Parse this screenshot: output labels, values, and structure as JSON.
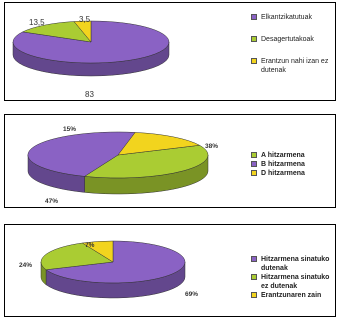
{
  "colors": {
    "purple": "#8a62c4",
    "green": "#aacc33",
    "yellow": "#f2d41e"
  },
  "chart_data": [
    {
      "type": "pie",
      "series": [
        {
          "values": [
            83,
            13.5,
            3.5
          ]
        }
      ],
      "categories": [
        "Elkantzikatutuak",
        "Desagertutakoak",
        "Erantzun nahi izan ez dutenak"
      ],
      "data_labels": [
        "83",
        "13,5",
        "3,5"
      ],
      "legend_position": "right"
    },
    {
      "type": "pie",
      "series": [
        {
          "values": [
            38,
            47,
            15
          ]
        }
      ],
      "categories": [
        "A hitzarmena",
        "B hitzarmena",
        "D hitzarmena"
      ],
      "data_labels": [
        "38%",
        "47%",
        "15%"
      ],
      "legend_position": "right"
    },
    {
      "type": "pie",
      "series": [
        {
          "values": [
            69,
            24,
            7
          ]
        }
      ],
      "categories": [
        "Hitzarmena sinatuko dutenak",
        "Hitzarmena sinatuko ez dutenak",
        "Erantzunaren zain"
      ],
      "data_labels": [
        "69%",
        "24%",
        "7%"
      ],
      "legend_position": "right"
    }
  ]
}
